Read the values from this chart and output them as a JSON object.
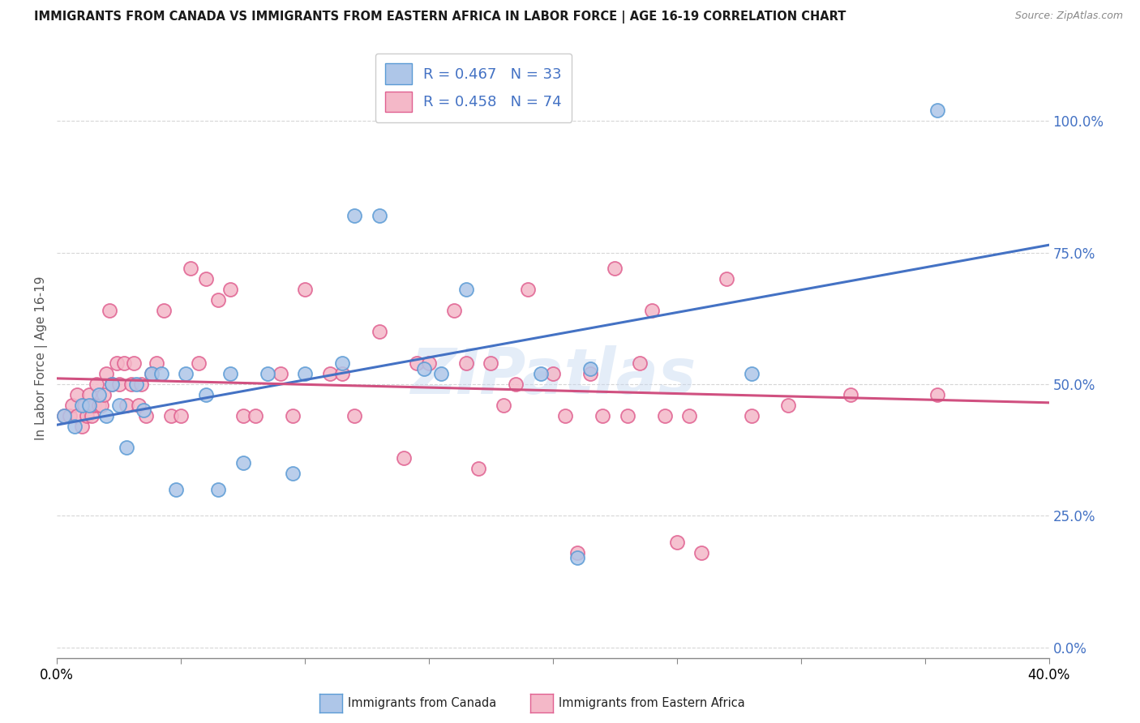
{
  "title": "IMMIGRANTS FROM CANADA VS IMMIGRANTS FROM EASTERN AFRICA IN LABOR FORCE | AGE 16-19 CORRELATION CHART",
  "source": "Source: ZipAtlas.com",
  "ylabel": "In Labor Force | Age 16-19",
  "xlim": [
    0.0,
    0.4
  ],
  "ylim": [
    -0.02,
    1.12
  ],
  "ytick_values": [
    0.0,
    0.25,
    0.5,
    0.75,
    1.0
  ],
  "canada_color": "#aec6e8",
  "canada_edge_color": "#5b9bd5",
  "eastern_africa_color": "#f4b8c8",
  "eastern_africa_edge_color": "#e06090",
  "trend_canada_color": "#4472c4",
  "trend_eastern_africa_color": "#d05080",
  "canada_R": 0.467,
  "canada_N": 33,
  "eastern_africa_R": 0.458,
  "eastern_africa_N": 74,
  "watermark": "ZIPatlas",
  "canada_x": [
    0.003,
    0.007,
    0.01,
    0.013,
    0.017,
    0.02,
    0.022,
    0.025,
    0.028,
    0.032,
    0.035,
    0.038,
    0.042,
    0.048,
    0.052,
    0.06,
    0.065,
    0.07,
    0.075,
    0.085,
    0.095,
    0.1,
    0.115,
    0.12,
    0.13,
    0.148,
    0.155,
    0.165,
    0.195,
    0.21,
    0.215,
    0.28,
    0.355
  ],
  "canada_y": [
    0.44,
    0.42,
    0.46,
    0.46,
    0.48,
    0.44,
    0.5,
    0.46,
    0.38,
    0.5,
    0.45,
    0.52,
    0.52,
    0.3,
    0.52,
    0.48,
    0.3,
    0.52,
    0.35,
    0.52,
    0.33,
    0.52,
    0.54,
    0.82,
    0.82,
    0.53,
    0.52,
    0.68,
    0.52,
    0.17,
    0.53,
    0.52,
    1.02
  ],
  "eastern_africa_x": [
    0.003,
    0.005,
    0.006,
    0.008,
    0.008,
    0.01,
    0.011,
    0.012,
    0.013,
    0.014,
    0.015,
    0.016,
    0.017,
    0.018,
    0.019,
    0.02,
    0.021,
    0.022,
    0.024,
    0.025,
    0.027,
    0.028,
    0.03,
    0.031,
    0.033,
    0.034,
    0.036,
    0.038,
    0.04,
    0.043,
    0.046,
    0.05,
    0.054,
    0.057,
    0.06,
    0.065,
    0.07,
    0.075,
    0.08,
    0.09,
    0.095,
    0.1,
    0.11,
    0.115,
    0.12,
    0.13,
    0.14,
    0.145,
    0.15,
    0.16,
    0.165,
    0.17,
    0.175,
    0.18,
    0.185,
    0.19,
    0.2,
    0.205,
    0.21,
    0.215,
    0.22,
    0.225,
    0.23,
    0.235,
    0.24,
    0.245,
    0.25,
    0.255,
    0.26,
    0.27,
    0.28,
    0.295,
    0.32,
    0.355
  ],
  "eastern_africa_y": [
    0.44,
    0.44,
    0.46,
    0.44,
    0.48,
    0.42,
    0.46,
    0.44,
    0.48,
    0.44,
    0.46,
    0.5,
    0.46,
    0.46,
    0.48,
    0.52,
    0.64,
    0.5,
    0.54,
    0.5,
    0.54,
    0.46,
    0.5,
    0.54,
    0.46,
    0.5,
    0.44,
    0.52,
    0.54,
    0.64,
    0.44,
    0.44,
    0.72,
    0.54,
    0.7,
    0.66,
    0.68,
    0.44,
    0.44,
    0.52,
    0.44,
    0.68,
    0.52,
    0.52,
    0.44,
    0.6,
    0.36,
    0.54,
    0.54,
    0.64,
    0.54,
    0.34,
    0.54,
    0.46,
    0.5,
    0.68,
    0.52,
    0.44,
    0.18,
    0.52,
    0.44,
    0.72,
    0.44,
    0.54,
    0.64,
    0.44,
    0.2,
    0.44,
    0.18,
    0.7,
    0.44,
    0.46,
    0.48,
    0.48
  ]
}
